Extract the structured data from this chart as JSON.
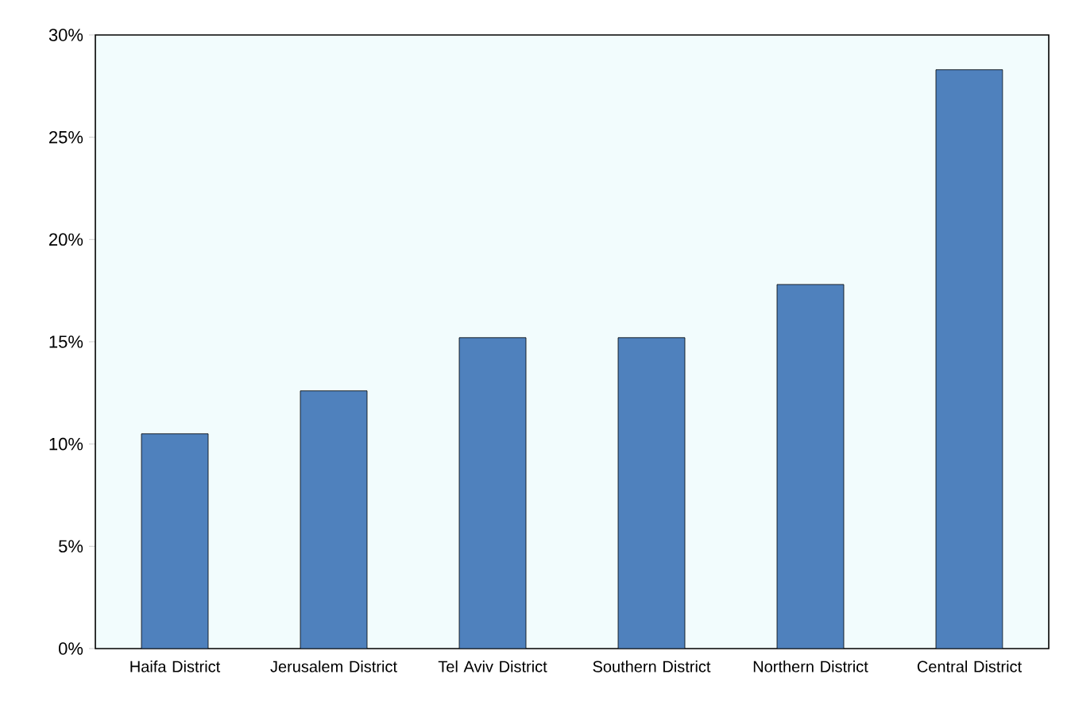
{
  "chart_data": {
    "type": "bar",
    "categories": [
      "Haifa District",
      "Jerusalem District",
      "Tel Aviv District",
      "Southern District",
      "Northern District",
      "Central District"
    ],
    "values": [
      10.5,
      12.6,
      15.2,
      15.2,
      17.8,
      28.3
    ],
    "color": "#4f81bd",
    "ylim": [
      0,
      30
    ],
    "yticks": [
      {
        "value": 0,
        "label": "0%"
      },
      {
        "value": 5,
        "label": "5%"
      },
      {
        "value": 10,
        "label": "10%"
      },
      {
        "value": 15,
        "label": "15%"
      },
      {
        "value": 20,
        "label": "20%"
      },
      {
        "value": 25,
        "label": "25%"
      },
      {
        "value": 30,
        "label": "30%"
      }
    ],
    "grid": false
  }
}
